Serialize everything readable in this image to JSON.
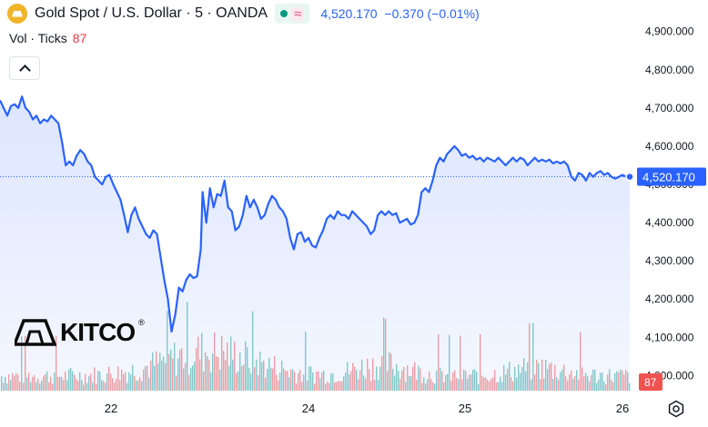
{
  "legend": {
    "symbol": "Gold Spot / U.S. Dollar · 5 · OANDA",
    "last": "4,520.170",
    "change": "−0.370 (−0.01%)"
  },
  "volume": {
    "label": "Vol · Ticks",
    "value": "87"
  },
  "logo": {
    "text": "KITCO",
    "mark": "®"
  },
  "icons": {
    "symbol": "gold-bar-icon",
    "collapse": "chevron-up-icon",
    "settings": "gear-icon"
  },
  "colors": {
    "line": "#2962ff",
    "up": "#26a69a",
    "down": "#ef5350",
    "last_label": "#2962ff"
  },
  "chart_data": {
    "type": "line",
    "title": "Gold Spot / U.S. Dollar · 5 · OANDA",
    "xlabel": "",
    "ylabel": "",
    "x_ticks": [
      "22",
      "24",
      "25",
      "26"
    ],
    "y_ticks": [
      "4,000.000",
      "4,100.000",
      "4,200.000",
      "4,300.000",
      "4,400.000",
      "4,500.000",
      "4,600.000",
      "4,700.000",
      "4,800.000",
      "4,900.000"
    ],
    "ylim": [
      3970,
      4935
    ],
    "last_value": 4520.17,
    "last_value_label": "4,520.170",
    "volume_last_label": "87",
    "grid": false,
    "price_points": [
      [
        0,
        4720
      ],
      [
        4,
        4700
      ],
      [
        8,
        4680
      ],
      [
        12,
        4705
      ],
      [
        16,
        4710
      ],
      [
        20,
        4700
      ],
      [
        24,
        4730
      ],
      [
        28,
        4700
      ],
      [
        32,
        4690
      ],
      [
        36,
        4670
      ],
      [
        40,
        4680
      ],
      [
        44,
        4660
      ],
      [
        48,
        4670
      ],
      [
        52,
        4665
      ],
      [
        56,
        4680
      ],
      [
        60,
        4670
      ],
      [
        64,
        4660
      ],
      [
        68,
        4610
      ],
      [
        72,
        4550
      ],
      [
        76,
        4560
      ],
      [
        80,
        4550
      ],
      [
        84,
        4575
      ],
      [
        88,
        4590
      ],
      [
        92,
        4580
      ],
      [
        96,
        4560
      ],
      [
        100,
        4550
      ],
      [
        104,
        4520
      ],
      [
        108,
        4510
      ],
      [
        112,
        4500
      ],
      [
        116,
        4520
      ],
      [
        120,
        4525
      ],
      [
        124,
        4500
      ],
      [
        128,
        4480
      ],
      [
        132,
        4460
      ],
      [
        136,
        4420
      ],
      [
        140,
        4375
      ],
      [
        144,
        4420
      ],
      [
        148,
        4440
      ],
      [
        152,
        4410
      ],
      [
        156,
        4390
      ],
      [
        160,
        4370
      ],
      [
        164,
        4360
      ],
      [
        168,
        4380
      ],
      [
        172,
        4370
      ],
      [
        176,
        4310
      ],
      [
        180,
        4250
      ],
      [
        184,
        4200
      ],
      [
        188,
        4115
      ],
      [
        192,
        4160
      ],
      [
        196,
        4230
      ],
      [
        200,
        4220
      ],
      [
        204,
        4250
      ],
      [
        208,
        4265
      ],
      [
        212,
        4255
      ],
      [
        216,
        4260
      ],
      [
        220,
        4330
      ],
      [
        222,
        4480
      ],
      [
        226,
        4400
      ],
      [
        230,
        4490
      ],
      [
        234,
        4440
      ],
      [
        238,
        4475
      ],
      [
        242,
        4470
      ],
      [
        246,
        4510
      ],
      [
        250,
        4440
      ],
      [
        254,
        4430
      ],
      [
        258,
        4380
      ],
      [
        262,
        4390
      ],
      [
        266,
        4420
      ],
      [
        270,
        4470
      ],
      [
        274,
        4440
      ],
      [
        278,
        4460
      ],
      [
        282,
        4440
      ],
      [
        286,
        4410
      ],
      [
        290,
        4420
      ],
      [
        294,
        4450
      ],
      [
        298,
        4470
      ],
      [
        302,
        4460
      ],
      [
        306,
        4440
      ],
      [
        310,
        4430
      ],
      [
        314,
        4410
      ],
      [
        318,
        4360
      ],
      [
        322,
        4330
      ],
      [
        326,
        4370
      ],
      [
        330,
        4375
      ],
      [
        334,
        4350
      ],
      [
        338,
        4360
      ],
      [
        342,
        4340
      ],
      [
        346,
        4335
      ],
      [
        350,
        4360
      ],
      [
        354,
        4380
      ],
      [
        358,
        4410
      ],
      [
        362,
        4420
      ],
      [
        366,
        4410
      ],
      [
        370,
        4430
      ],
      [
        374,
        4420
      ],
      [
        378,
        4420
      ],
      [
        382,
        4410
      ],
      [
        386,
        4430
      ],
      [
        390,
        4420
      ],
      [
        394,
        4410
      ],
      [
        398,
        4400
      ],
      [
        402,
        4390
      ],
      [
        406,
        4370
      ],
      [
        410,
        4380
      ],
      [
        414,
        4420
      ],
      [
        418,
        4430
      ],
      [
        422,
        4420
      ],
      [
        426,
        4430
      ],
      [
        430,
        4420
      ],
      [
        434,
        4425
      ],
      [
        438,
        4400
      ],
      [
        442,
        4405
      ],
      [
        446,
        4410
      ],
      [
        450,
        4395
      ],
      [
        454,
        4400
      ],
      [
        458,
        4420
      ],
      [
        462,
        4480
      ],
      [
        466,
        4490
      ],
      [
        470,
        4480
      ],
      [
        474,
        4510
      ],
      [
        478,
        4550
      ],
      [
        482,
        4570
      ],
      [
        486,
        4560
      ],
      [
        490,
        4580
      ],
      [
        494,
        4590
      ],
      [
        498,
        4600
      ],
      [
        502,
        4590
      ],
      [
        506,
        4575
      ],
      [
        510,
        4580
      ],
      [
        514,
        4570
      ],
      [
        518,
        4575
      ],
      [
        522,
        4565
      ],
      [
        526,
        4570
      ],
      [
        530,
        4560
      ],
      [
        534,
        4570
      ],
      [
        538,
        4565
      ],
      [
        542,
        4560
      ],
      [
        546,
        4570
      ],
      [
        550,
        4560
      ],
      [
        554,
        4550
      ],
      [
        558,
        4560
      ],
      [
        562,
        4570
      ],
      [
        566,
        4560
      ],
      [
        570,
        4570
      ],
      [
        574,
        4565
      ],
      [
        578,
        4550
      ],
      [
        582,
        4560
      ],
      [
        586,
        4570
      ],
      [
        590,
        4560
      ],
      [
        594,
        4565
      ],
      [
        598,
        4560
      ],
      [
        602,
        4565
      ],
      [
        606,
        4555
      ],
      [
        610,
        4560
      ],
      [
        614,
        4555
      ],
      [
        618,
        4560
      ],
      [
        622,
        4550
      ],
      [
        626,
        4520
      ],
      [
        630,
        4510
      ],
      [
        634,
        4530
      ],
      [
        638,
        4525
      ],
      [
        642,
        4510
      ],
      [
        646,
        4530
      ],
      [
        650,
        4520
      ],
      [
        654,
        4530
      ],
      [
        658,
        4535
      ],
      [
        662,
        4525
      ],
      [
        666,
        4530
      ],
      [
        670,
        4520
      ],
      [
        674,
        4515
      ],
      [
        678,
        4520
      ],
      [
        682,
        4525
      ],
      [
        686,
        4520
      ],
      [
        690,
        4520
      ]
    ]
  }
}
